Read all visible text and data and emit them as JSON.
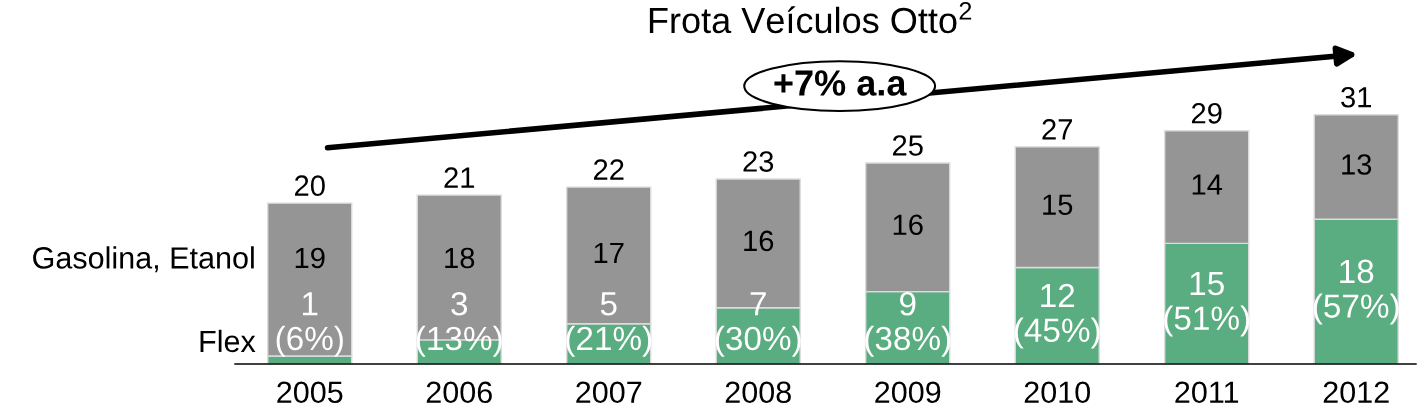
{
  "chart_data": {
    "type": "bar",
    "title": "Frota Veículos Otto$^{2}$",
    "stacked": true,
    "categories": [
      "2005",
      "2006",
      "2007",
      "2008",
      "2009",
      "2010",
      "2011",
      "2012"
    ],
    "series": [
      {
        "name": "Flex",
        "color": "#5aad80",
        "values": [
          1,
          3,
          5,
          7,
          9,
          12,
          15,
          18
        ],
        "value_labels": [
          "1\n(6%)",
          "3\n(13%)",
          "5\n(21%)",
          "7\n(30%)",
          "9\n(38%)",
          "12\n(45%)",
          "15\n(51%)",
          "18\n(57%)"
        ]
      },
      {
        "name": "Gasolina, Etanol",
        "color": "#959595",
        "values": [
          19,
          18,
          17,
          16,
          16,
          15,
          14,
          13
        ],
        "value_labels": [
          "19",
          "18",
          "17",
          "16",
          "16",
          "15",
          "14",
          "13"
        ]
      }
    ],
    "totals": [
      "20",
      "21",
      "22",
      "23",
      "25",
      "27",
      "29",
      "31"
    ],
    "annotations": [
      "+7% a.a"
    ]
  }
}
